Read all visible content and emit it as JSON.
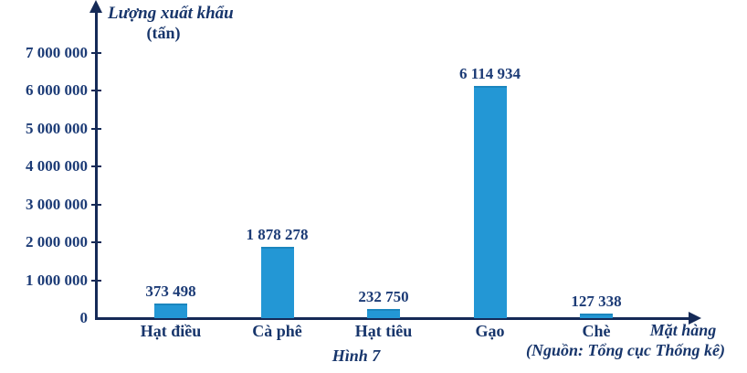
{
  "chart_data": {
    "type": "bar",
    "title": "Lượng xuất khẩu",
    "unit_label": "(tấn)",
    "xlabel": "Mặt hàng",
    "categories": [
      "Hạt điều",
      "Cà phê",
      "Hạt tiêu",
      "Gạo",
      "Chè"
    ],
    "values": [
      373498,
      1878278,
      232750,
      6114934,
      127338
    ],
    "value_labels": [
      "373 498",
      "1 878 278",
      "232 750",
      "6 114 934",
      "127 338"
    ],
    "y_ticks": [
      "7 000 000",
      "6 000 000",
      "5 000 000",
      "4 000 000",
      "3 000 000",
      "2 000 000",
      "1 000 000",
      "0"
    ],
    "ylim": [
      0,
      7000000
    ],
    "legend": "none",
    "grid": false,
    "bar_color": "#2397d5",
    "bar_edge_color": "#1b86be",
    "text_color": "#1c3b76",
    "axis_color": "#152a57",
    "caption": "Hình 7",
    "source": "(Nguồn: Tổng cục Thống kê)"
  }
}
